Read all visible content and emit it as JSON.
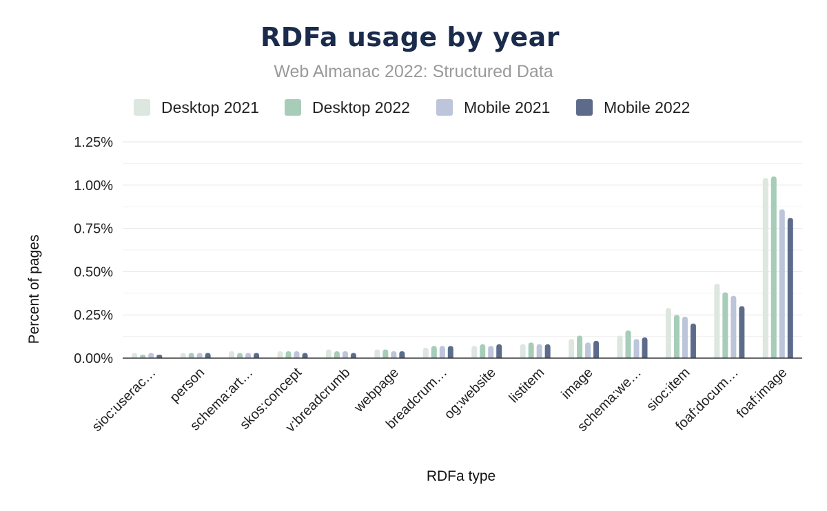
{
  "chart_data": {
    "type": "bar",
    "title": "RDFa usage by year",
    "subtitle": "Web Almanac 2022: Structured Data",
    "xlabel": "RDFa type",
    "ylabel": "Percent of pages",
    "ylim": [
      0,
      1.25
    ],
    "y_ticks": [
      "0.00%",
      "0.25%",
      "0.50%",
      "0.75%",
      "1.00%",
      "1.25%"
    ],
    "grid": true,
    "legend_position": "top",
    "categories": [
      "sioc:userac…",
      "person",
      "schema:art…",
      "skos:concept",
      "v:breadcrumb",
      "webpage",
      "breadcrum…",
      "og:website",
      "listitem",
      "image",
      "schema:we…",
      "sioc:item",
      "foaf:docum…",
      "foaf:image"
    ],
    "series": [
      {
        "name": "Desktop 2021",
        "color": "#dde6df",
        "values": [
          0.03,
          0.03,
          0.04,
          0.04,
          0.05,
          0.05,
          0.06,
          0.07,
          0.08,
          0.11,
          0.13,
          0.29,
          0.43,
          1.04
        ]
      },
      {
        "name": "Desktop 2022",
        "color": "#a7cdb9",
        "values": [
          0.02,
          0.03,
          0.03,
          0.04,
          0.04,
          0.05,
          0.07,
          0.08,
          0.09,
          0.13,
          0.16,
          0.25,
          0.38,
          1.05
        ]
      },
      {
        "name": "Mobile 2021",
        "color": "#bcc5d9",
        "values": [
          0.03,
          0.03,
          0.03,
          0.04,
          0.04,
          0.04,
          0.07,
          0.07,
          0.08,
          0.09,
          0.11,
          0.24,
          0.36,
          0.86
        ]
      },
      {
        "name": "Mobile 2022",
        "color": "#5d6b8b",
        "values": [
          0.02,
          0.03,
          0.03,
          0.03,
          0.03,
          0.04,
          0.07,
          0.08,
          0.08,
          0.1,
          0.12,
          0.2,
          0.3,
          0.81
        ]
      }
    ]
  }
}
